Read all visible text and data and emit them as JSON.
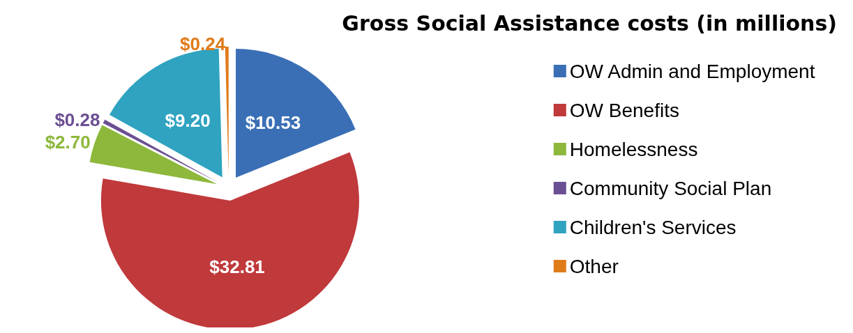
{
  "chart_data": {
    "type": "pie",
    "title": "Gross Social Assistance costs (in millions)",
    "categories": [
      "OW Admin and Employment",
      "OW Benefits",
      "Homelessness",
      "Community Social Plan",
      "Children's Services",
      "Other"
    ],
    "values": [
      10.53,
      32.81,
      2.7,
      0.28,
      9.2,
      0.24
    ],
    "value_labels": [
      "$10.53",
      "$32.81",
      "$2.70",
      "$0.28",
      "$9.20",
      "$0.24"
    ],
    "colors": [
      "#3a6fb5",
      "#c0393b",
      "#8db83c",
      "#6b4f93",
      "#2fa3c0",
      "#e07b1a"
    ],
    "legend": "right"
  }
}
